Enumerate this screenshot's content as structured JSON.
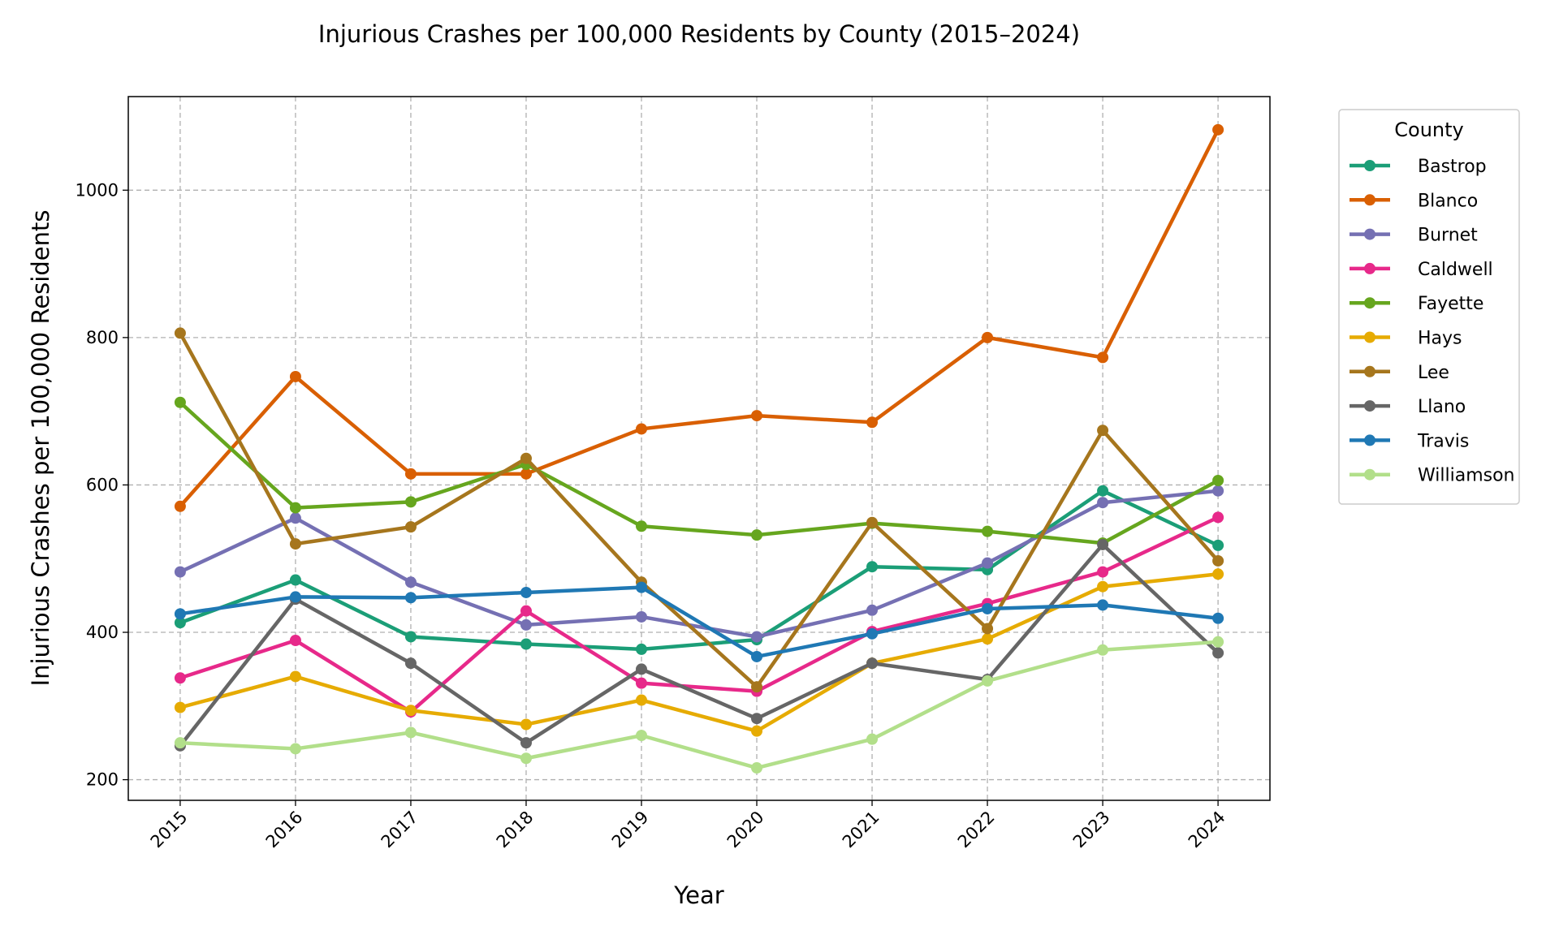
{
  "chart_data": {
    "type": "line",
    "title": "Injurious Crashes per 100,000 Residents by County (2015–2024)",
    "xlabel": "Year",
    "ylabel": "Injurious Crashes per 100,000 Residents",
    "x": [
      2015,
      2016,
      2017,
      2018,
      2019,
      2020,
      2021,
      2022,
      2023,
      2024
    ],
    "x_tick_labels": [
      "2015",
      "2016",
      "2017",
      "2018",
      "2019",
      "2020",
      "2021",
      "2022",
      "2023",
      "2024"
    ],
    "y_ticks": [
      200,
      400,
      600,
      800,
      1000
    ],
    "y_tick_labels": [
      "200",
      "400",
      "600",
      "800",
      "1000"
    ],
    "xlim": [
      2014.55,
      2024.45
    ],
    "ylim": [
      172,
      1127
    ],
    "grid": true,
    "legend": {
      "title": "County",
      "placement": "outside-right"
    },
    "series": [
      {
        "name": "Bastrop",
        "color": "#1b9e77",
        "values": [
          413,
          471,
          394,
          384,
          377,
          390,
          489,
          485,
          592,
          518
        ]
      },
      {
        "name": "Blanco",
        "color": "#d95f02",
        "values": [
          571,
          747,
          615,
          615,
          676,
          694,
          685,
          800,
          773,
          1082
        ]
      },
      {
        "name": "Burnet",
        "color": "#7570b3",
        "values": [
          482,
          555,
          468,
          410,
          421,
          394,
          430,
          494,
          576,
          592
        ]
      },
      {
        "name": "Caldwell",
        "color": "#e7298a",
        "values": [
          338,
          389,
          292,
          429,
          331,
          320,
          401,
          439,
          482,
          556
        ]
      },
      {
        "name": "Fayette",
        "color": "#66a61e",
        "values": [
          712,
          569,
          577,
          628,
          544,
          532,
          548,
          537,
          521,
          606
        ]
      },
      {
        "name": "Hays",
        "color": "#e6ab02",
        "values": [
          298,
          340,
          294,
          275,
          308,
          266,
          358,
          391,
          462,
          479
        ]
      },
      {
        "name": "Lee",
        "color": "#a6761d",
        "values": [
          806,
          520,
          543,
          636,
          468,
          326,
          549,
          405,
          674,
          497
        ]
      },
      {
        "name": "Llano",
        "color": "#666666",
        "values": [
          246,
          445,
          358,
          250,
          350,
          283,
          358,
          336,
          519,
          372
        ]
      },
      {
        "name": "Travis",
        "color": "#1f78b4",
        "values": [
          425,
          448,
          447,
          454,
          461,
          367,
          398,
          432,
          437,
          419
        ]
      },
      {
        "name": "Williamson",
        "color": "#b2df8a",
        "values": [
          250,
          242,
          264,
          229,
          260,
          216,
          255,
          334,
          376,
          387
        ]
      }
    ]
  }
}
